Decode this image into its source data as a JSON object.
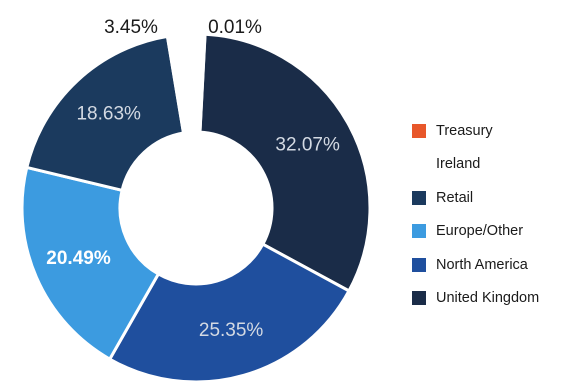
{
  "chart_data": {
    "type": "pie",
    "donut": true,
    "title": "",
    "slices": [
      {
        "label": "Treasury",
        "value": 0.01,
        "value_label": "0.01%",
        "color": "#e8572a"
      },
      {
        "label": "United Kingdom",
        "value": 32.07,
        "value_label": "32.07%",
        "color": "#1a2c48"
      },
      {
        "label": "North America",
        "value": 25.35,
        "value_label": "25.35%",
        "color": "#1f4f9e"
      },
      {
        "label": "Europe/Other",
        "value": 20.49,
        "value_label": "20.49%",
        "color": "#3c9be0"
      },
      {
        "label": "Retail",
        "value": 18.63,
        "value_label": "18.63%",
        "color": "#1b3a5e"
      },
      {
        "label": "Ireland",
        "value": 3.45,
        "value_label": "3.45%",
        "color": "#ffffff"
      }
    ],
    "legend_position": "right",
    "legend": [
      {
        "label": "Treasury",
        "color": "#e8572a"
      },
      {
        "label": "Ireland",
        "color": "#ffffff"
      },
      {
        "label": "Retail",
        "color": "#1b3a5e"
      },
      {
        "label": "Europe/Other",
        "color": "#3c9be0"
      },
      {
        "label": "North America",
        "color": "#1f4f9e"
      },
      {
        "label": "United Kingdom",
        "color": "#1a2c48"
      }
    ]
  }
}
